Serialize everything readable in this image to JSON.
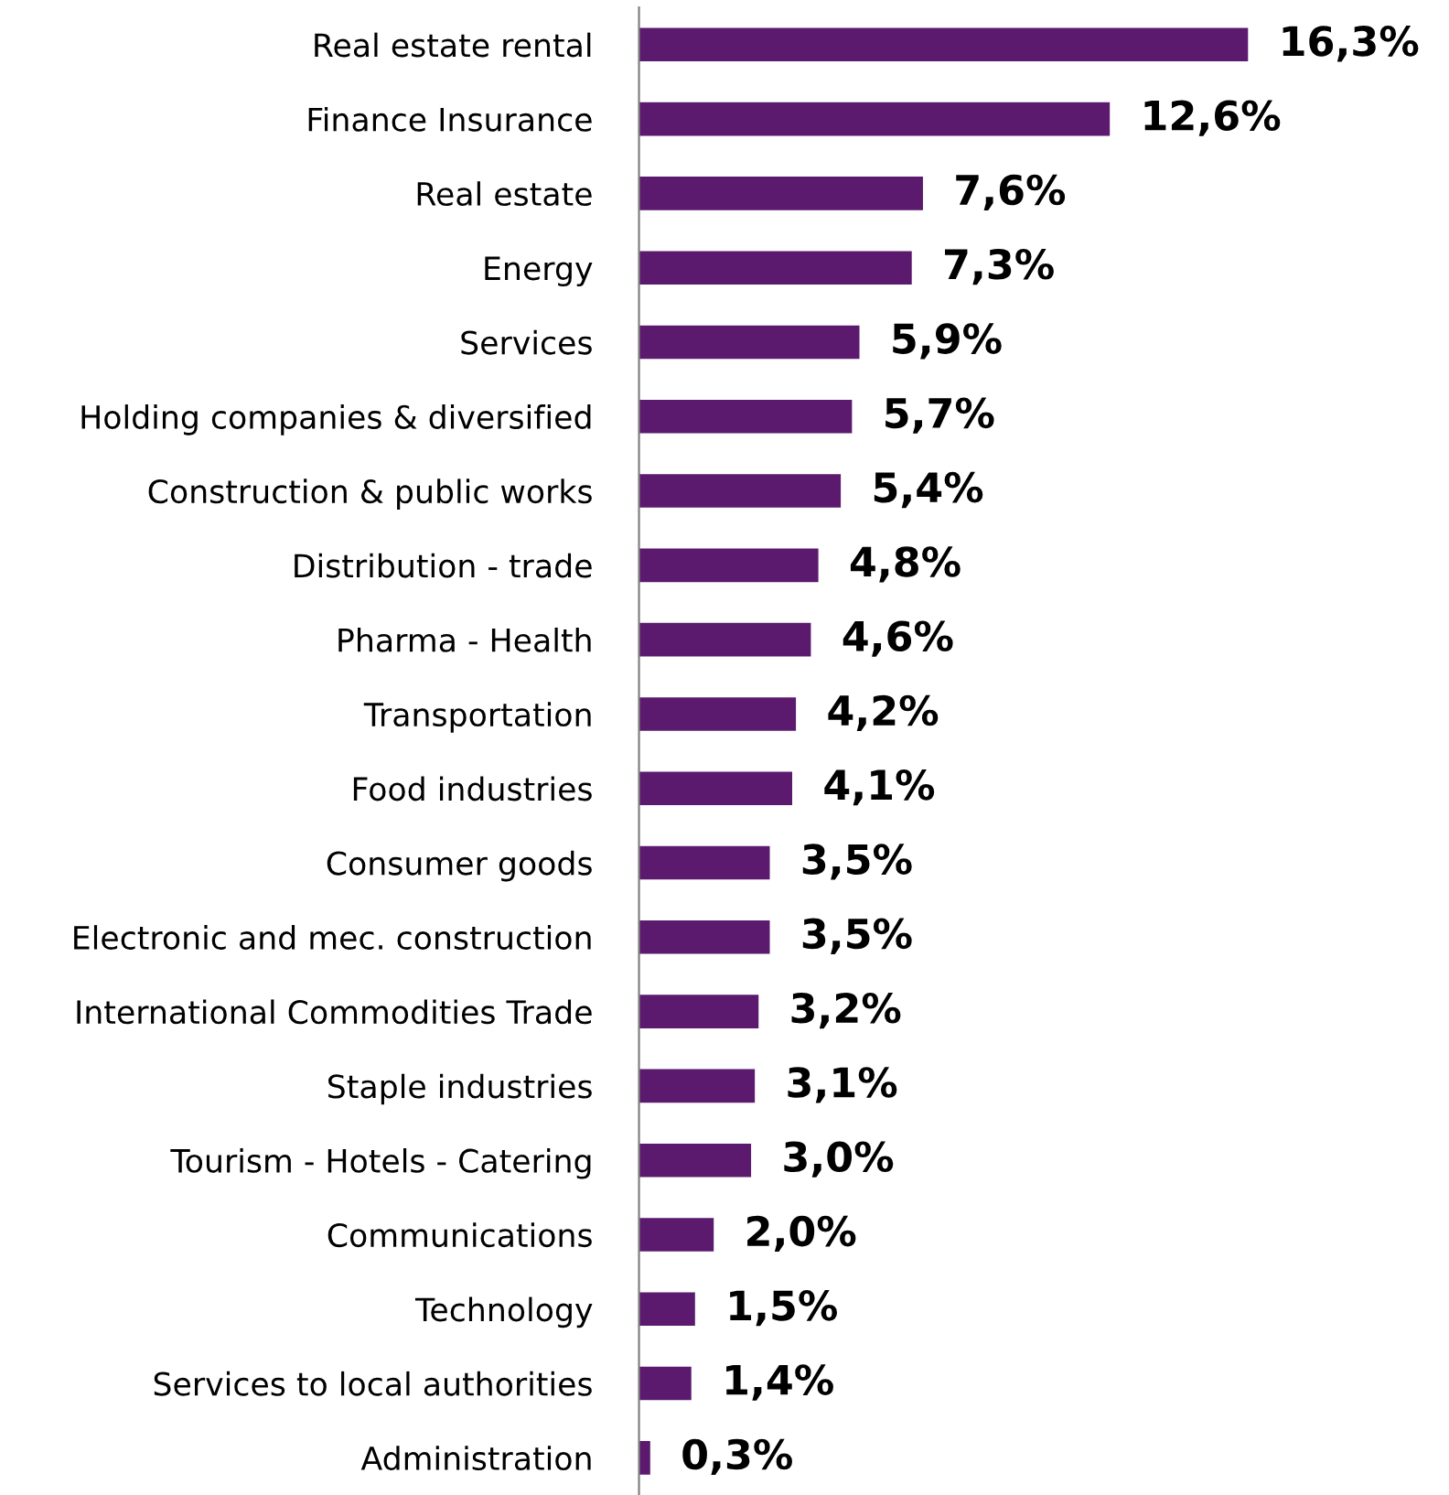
{
  "chart_data": {
    "type": "bar",
    "orientation": "horizontal",
    "categories": [
      "Real estate rental",
      "Finance Insurance",
      "Real estate",
      "Energy",
      "Services",
      "Holding companies & diversified",
      "Construction & public works",
      "Distribution - trade",
      "Pharma - Health",
      "Transportation",
      "Food industries",
      "Consumer goods",
      "Electronic and mec. construction",
      "International Commodities Trade",
      "Staple industries",
      "Tourism - Hotels - Catering",
      "Communications",
      "Technology",
      "Services to local authorities",
      "Administration"
    ],
    "values": [
      16.3,
      12.6,
      7.6,
      7.3,
      5.9,
      5.7,
      5.4,
      4.8,
      4.6,
      4.2,
      4.1,
      3.5,
      3.5,
      3.2,
      3.1,
      3.0,
      2.0,
      1.5,
      1.4,
      0.3
    ],
    "value_labels": [
      "16,3%",
      "12,6%",
      "7,6%",
      "7,3%",
      "5,9%",
      "5,7%",
      "5,4%",
      "4,8%",
      "4,6%",
      "4,2%",
      "4,1%",
      "3,5%",
      "3,5%",
      "3,2%",
      "3,1%",
      "3,0%",
      "2,0%",
      "1,5%",
      "1,4%",
      "0,3%"
    ],
    "color": "#5b1a6e",
    "tick_labels": "y",
    "grid": false,
    "legend": false
  }
}
